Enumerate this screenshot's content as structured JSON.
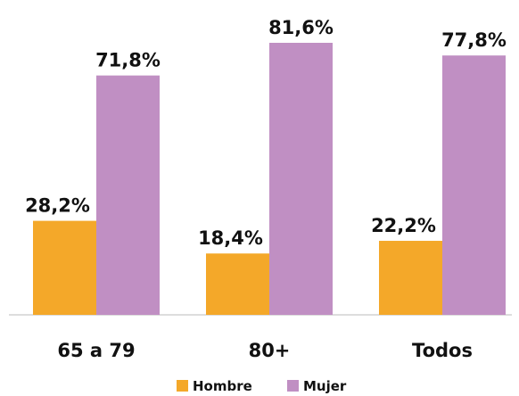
{
  "chart_data": {
    "type": "bar",
    "categories": [
      "65 a 79",
      "80+",
      "Todos"
    ],
    "series": [
      {
        "name": "Hombre",
        "color": "#f4a829",
        "values": [
          28.2,
          18.4,
          22.2
        ],
        "value_labels": [
          "28,2%",
          "18,4%",
          "22,2%"
        ]
      },
      {
        "name": "Mujer",
        "color": "#c08fc3",
        "values": [
          71.8,
          81.6,
          77.8
        ],
        "value_labels": [
          "71,8%",
          "81,6%",
          "77,8%"
        ]
      }
    ]
  }
}
